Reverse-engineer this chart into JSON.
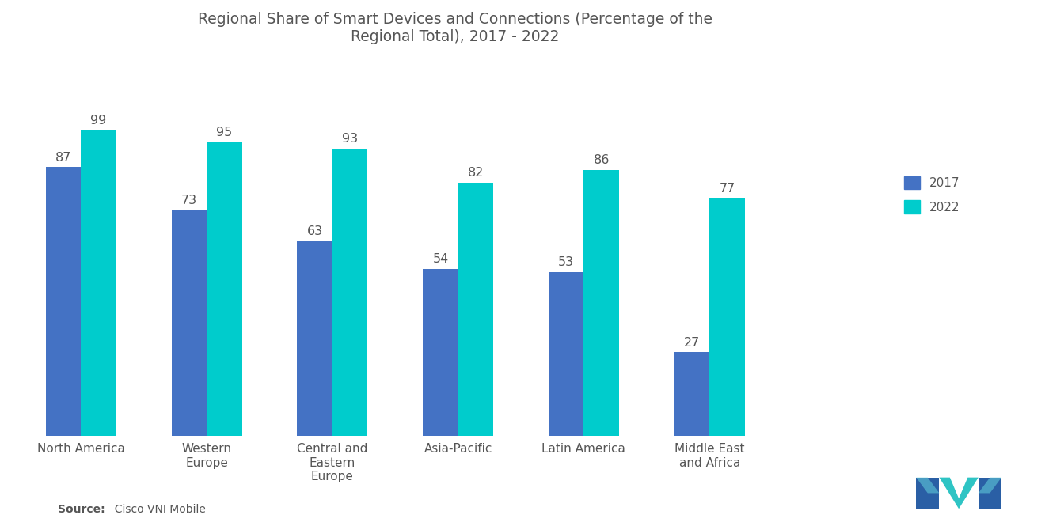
{
  "title": "Regional Share of Smart Devices and Connections (Percentage of the\nRegional Total), 2017 - 2022",
  "categories": [
    "North America",
    "Western\nEurope",
    "Central and\nEastern\nEurope",
    "Asia-Pacific",
    "Latin America",
    "Middle East\nand Africa"
  ],
  "values_2017": [
    87,
    73,
    63,
    54,
    53,
    27
  ],
  "values_2022": [
    99,
    95,
    93,
    82,
    86,
    77
  ],
  "color_2017": "#4472c4",
  "color_2022": "#00cccc",
  "legend_2017": "2017",
  "legend_2022": "2022",
  "source_bold": "Source:",
  "source_rest": "  Cisco VNI Mobile",
  "bar_width": 0.28,
  "ylim": [
    0,
    120
  ],
  "xlim_left": -0.55,
  "xlim_right": 6.5,
  "background_color": "#ffffff",
  "title_fontsize": 13.5,
  "label_fontsize": 11,
  "tick_fontsize": 11,
  "annot_fontsize": 11.5,
  "source_fontsize": 10,
  "text_color": "#555555"
}
